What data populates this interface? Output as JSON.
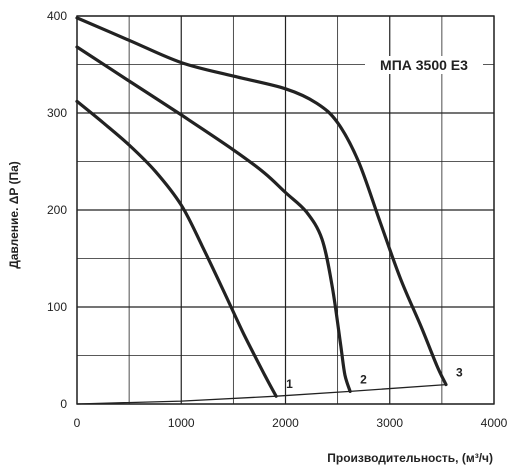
{
  "chart_data": {
    "type": "line",
    "title": "МПА 3500 Е3",
    "xlabel": "Производительность, (м³/ч)",
    "ylabel": "Давление. ΔP (Па)",
    "xlim": [
      0,
      4000
    ],
    "ylim": [
      0,
      400
    ],
    "x_ticks": [
      "0",
      "1000",
      "2000",
      "3000",
      "4000"
    ],
    "y_ticks": [
      "0",
      "100",
      "200",
      "300",
      "400"
    ],
    "grid": true,
    "colors": {
      "curve": "#222222",
      "grid": "#222222",
      "background": "#ffffff"
    },
    "series": [
      {
        "name": "1",
        "points": [
          [
            0,
            312
          ],
          [
            250,
            290
          ],
          [
            500,
            267
          ],
          [
            750,
            240
          ],
          [
            1000,
            205
          ],
          [
            1200,
            163
          ],
          [
            1400,
            118
          ],
          [
            1600,
            72
          ],
          [
            1800,
            30
          ],
          [
            1910,
            8
          ]
        ]
      },
      {
        "name": "2",
        "points": [
          [
            0,
            368
          ],
          [
            500,
            333
          ],
          [
            1000,
            298
          ],
          [
            1500,
            262
          ],
          [
            1800,
            238
          ],
          [
            2000,
            218
          ],
          [
            2200,
            198
          ],
          [
            2350,
            170
          ],
          [
            2450,
            120
          ],
          [
            2530,
            60
          ],
          [
            2570,
            30
          ],
          [
            2620,
            13
          ]
        ]
      },
      {
        "name": "3",
        "points": [
          [
            0,
            398
          ],
          [
            500,
            375
          ],
          [
            1000,
            352
          ],
          [
            1500,
            338
          ],
          [
            2000,
            325
          ],
          [
            2300,
            310
          ],
          [
            2500,
            290
          ],
          [
            2700,
            250
          ],
          [
            2900,
            190
          ],
          [
            3100,
            130
          ],
          [
            3300,
            80
          ],
          [
            3450,
            40
          ],
          [
            3540,
            20
          ]
        ]
      },
      {
        "name": "",
        "points": [
          [
            0,
            0
          ],
          [
            1000,
            3
          ],
          [
            1910,
            8
          ],
          [
            2620,
            13
          ],
          [
            3540,
            20
          ]
        ]
      }
    ]
  }
}
